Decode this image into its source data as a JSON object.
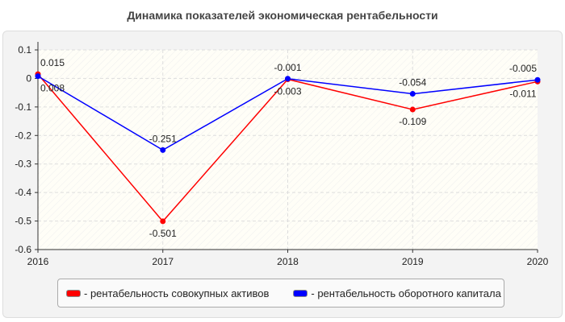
{
  "chart_data": {
    "type": "line",
    "title": "Динамика показателей экономическая рентабельности",
    "categories": [
      "2016",
      "2017",
      "2018",
      "2019",
      "2020"
    ],
    "ylim": [
      -0.6,
      0.1
    ],
    "yticks": [
      "0.1",
      "0",
      "-0.1",
      "-0.2",
      "-0.3",
      "-0.4",
      "-0.5",
      "-0.6"
    ],
    "grid": true,
    "legend_position": "bottom",
    "series": [
      {
        "name": "- рентабельность совокупных активов",
        "color": "#ff0000",
        "values": [
          0.015,
          -0.501,
          -0.003,
          -0.109,
          -0.011
        ]
      },
      {
        "name": "- рентабельность оборотного капитала",
        "color": "#0000ff",
        "values": [
          0.008,
          -0.251,
          -0.001,
          -0.054,
          -0.005
        ]
      }
    ]
  }
}
